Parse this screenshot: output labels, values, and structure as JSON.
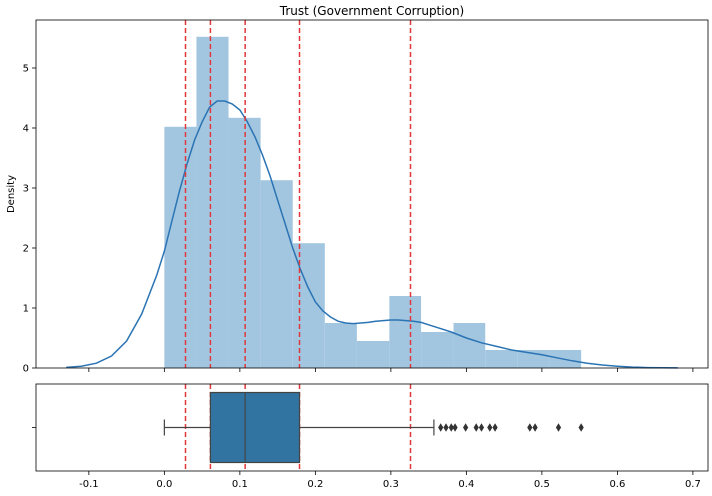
{
  "chart_data": [
    {
      "type": "histogram",
      "title": "Trust (Government Corruption)",
      "xlabel": "",
      "ylabel": "Density",
      "xlim": [
        -0.17,
        0.72
      ],
      "ylim": [
        0,
        5.8
      ],
      "yticks": [
        0,
        1,
        2,
        3,
        4,
        5
      ],
      "bins": [
        {
          "x0": 0.0,
          "x1": 0.0425,
          "density": 4.02
        },
        {
          "x0": 0.0425,
          "x1": 0.085,
          "density": 5.52
        },
        {
          "x0": 0.085,
          "x1": 0.1275,
          "density": 4.17
        },
        {
          "x0": 0.1275,
          "x1": 0.17,
          "density": 3.13
        },
        {
          "x0": 0.17,
          "x1": 0.2125,
          "density": 2.08
        },
        {
          "x0": 0.2125,
          "x1": 0.255,
          "density": 0.75
        },
        {
          "x0": 0.255,
          "x1": 0.298,
          "density": 0.45
        },
        {
          "x0": 0.298,
          "x1": 0.34,
          "density": 1.2
        },
        {
          "x0": 0.34,
          "x1": 0.383,
          "density": 0.6
        },
        {
          "x0": 0.383,
          "x1": 0.425,
          "density": 0.75
        },
        {
          "x0": 0.425,
          "x1": 0.4675,
          "density": 0.3
        },
        {
          "x0": 0.4675,
          "x1": 0.51,
          "density": 0.3
        },
        {
          "x0": 0.51,
          "x1": 0.552,
          "density": 0.3
        }
      ],
      "kde": {
        "x": [
          -0.13,
          -0.11,
          -0.09,
          -0.07,
          -0.05,
          -0.03,
          -0.01,
          0.0,
          0.01,
          0.02,
          0.03,
          0.04,
          0.05,
          0.06,
          0.07,
          0.08,
          0.09,
          0.1,
          0.11,
          0.12,
          0.13,
          0.14,
          0.15,
          0.16,
          0.17,
          0.18,
          0.19,
          0.2,
          0.21,
          0.22,
          0.23,
          0.24,
          0.25,
          0.26,
          0.27,
          0.28,
          0.29,
          0.3,
          0.31,
          0.32,
          0.33,
          0.34,
          0.35,
          0.36,
          0.38,
          0.4,
          0.42,
          0.44,
          0.46,
          0.48,
          0.5,
          0.52,
          0.54,
          0.56,
          0.58,
          0.6,
          0.62,
          0.64,
          0.66,
          0.68
        ],
        "y": [
          0.01,
          0.03,
          0.08,
          0.2,
          0.45,
          0.9,
          1.55,
          1.95,
          2.45,
          2.95,
          3.4,
          3.8,
          4.1,
          4.35,
          4.45,
          4.45,
          4.4,
          4.3,
          4.1,
          3.85,
          3.55,
          3.2,
          2.8,
          2.4,
          2.0,
          1.65,
          1.35,
          1.1,
          0.95,
          0.85,
          0.78,
          0.75,
          0.74,
          0.75,
          0.76,
          0.78,
          0.79,
          0.8,
          0.8,
          0.79,
          0.78,
          0.76,
          0.72,
          0.68,
          0.6,
          0.5,
          0.42,
          0.36,
          0.3,
          0.26,
          0.22,
          0.17,
          0.12,
          0.08,
          0.05,
          0.03,
          0.015,
          0.007,
          0.003,
          0.001
        ]
      },
      "vlines": [
        0.028,
        0.061,
        0.107,
        0.179,
        0.326
      ],
      "vline_color": "#e0393c",
      "bar_color": "#a3c6e0",
      "kde_color": "#2a74b4"
    },
    {
      "type": "boxplot",
      "xlabel": "",
      "xlim": [
        -0.17,
        0.72
      ],
      "xticks": [
        -0.1,
        0.0,
        0.1,
        0.2,
        0.3,
        0.4,
        0.5,
        0.6,
        0.7
      ],
      "box": {
        "whisker_low": 0.0,
        "q1": 0.061,
        "median": 0.107,
        "q3": 0.179,
        "whisker_high": 0.357
      },
      "outliers": [
        0.366,
        0.373,
        0.38,
        0.385,
        0.399,
        0.413,
        0.42,
        0.431,
        0.438,
        0.484,
        0.491,
        0.522,
        0.552
      ],
      "vlines": [
        0.028,
        0.061,
        0.107,
        0.179,
        0.326
      ],
      "box_color": "#3274a1"
    }
  ]
}
